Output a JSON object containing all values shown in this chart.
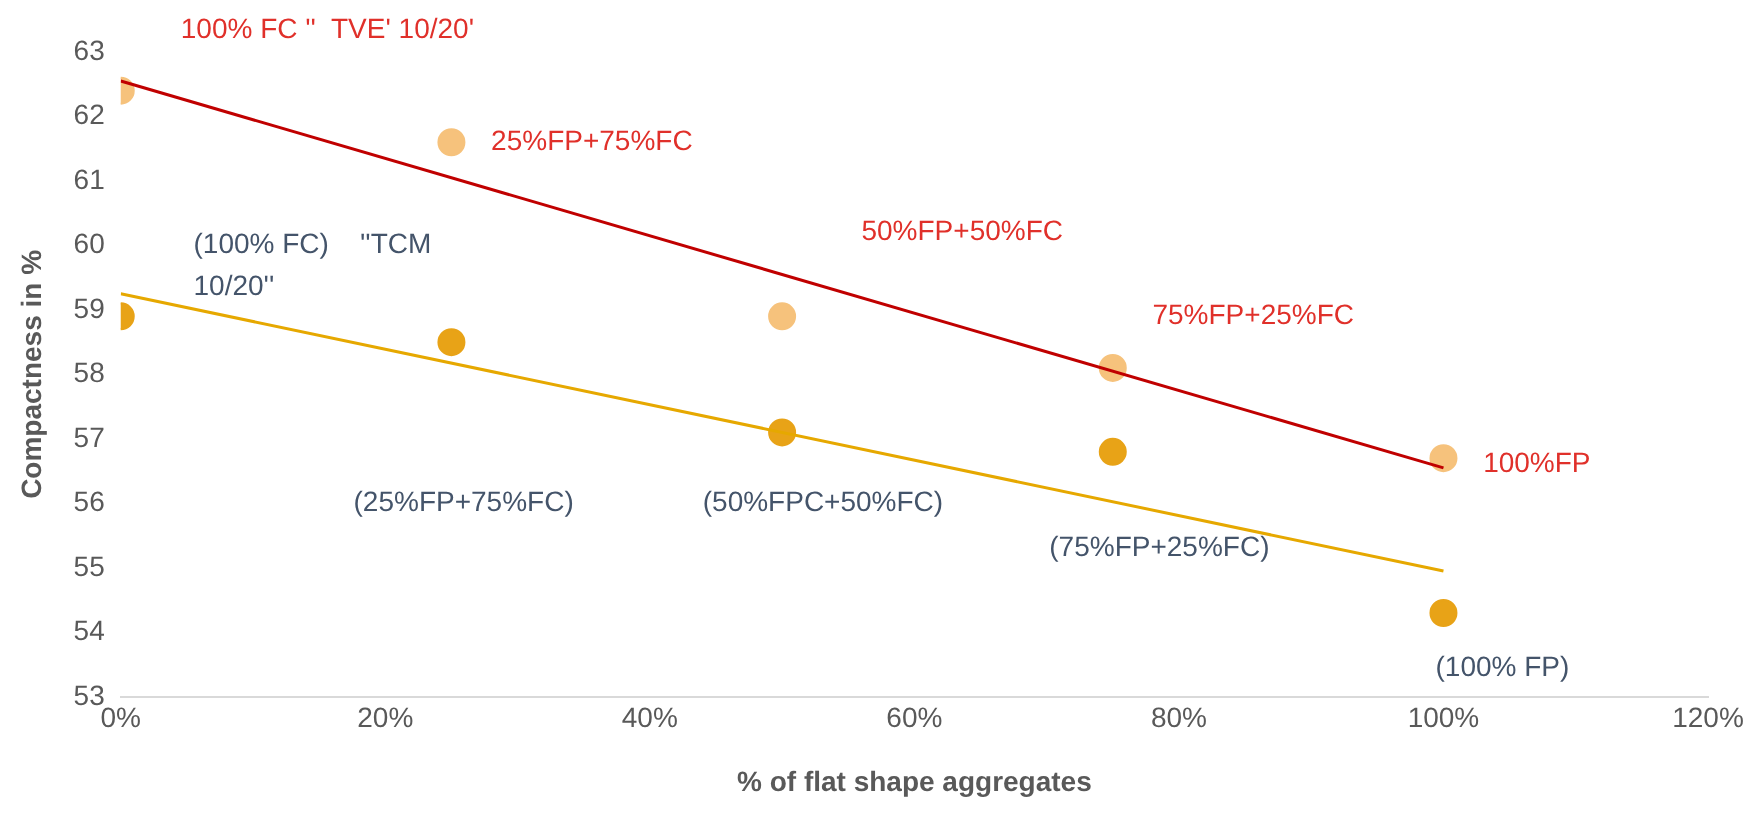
{
  "chart_data": {
    "type": "scatter",
    "xlabel": "% of flat shape aggregates",
    "ylabel": "Compactness in %",
    "xlim": [
      0,
      120
    ],
    "xticks": [
      {
        "value": 0,
        "label": "0%"
      },
      {
        "value": 20,
        "label": "20%"
      },
      {
        "value": 40,
        "label": "40%"
      },
      {
        "value": 60,
        "label": "60%"
      },
      {
        "value": 80,
        "label": "80%"
      },
      {
        "value": 100,
        "label": "100%"
      },
      {
        "value": 120,
        "label": "120%"
      }
    ],
    "ylim": [
      53,
      63
    ],
    "yticks": [
      53,
      54,
      55,
      56,
      57,
      58,
      59,
      60,
      61,
      62,
      63
    ],
    "grid": false,
    "legend": false,
    "marker": "circle",
    "series": [
      {
        "color": "#f6c27c",
        "x": [
          0,
          25,
          50,
          75,
          100
        ],
        "values": [
          62.4,
          61.6,
          58.9,
          58.1,
          56.7
        ]
      },
      {
        "color": "#e8a317",
        "x": [
          0,
          25,
          50,
          75,
          100
        ],
        "values": [
          58.9,
          58.5,
          57.1,
          56.8,
          54.3
        ]
      },
      {
        "type": "line",
        "marker": "none",
        "color": "#c00000",
        "x": [
          0,
          100
        ],
        "values": [
          62.55,
          56.55
        ]
      },
      {
        "type": "line",
        "marker": "none",
        "color": "#e6a800",
        "x": [
          0,
          100
        ],
        "values": [
          59.25,
          54.95
        ]
      }
    ],
    "annotations": [
      "100% FC ''  TVE' 10/20'",
      "25%FP+75%FC",
      "50%FP+50%FC",
      "75%FP+25%FC",
      "100%FP",
      "(100% FC)    ''TCM 10/20''",
      "(25%FP+75%FC)",
      "(50%FPC+50%FC)",
      "(75%FP+25%FC)",
      "(100% FP)"
    ]
  }
}
